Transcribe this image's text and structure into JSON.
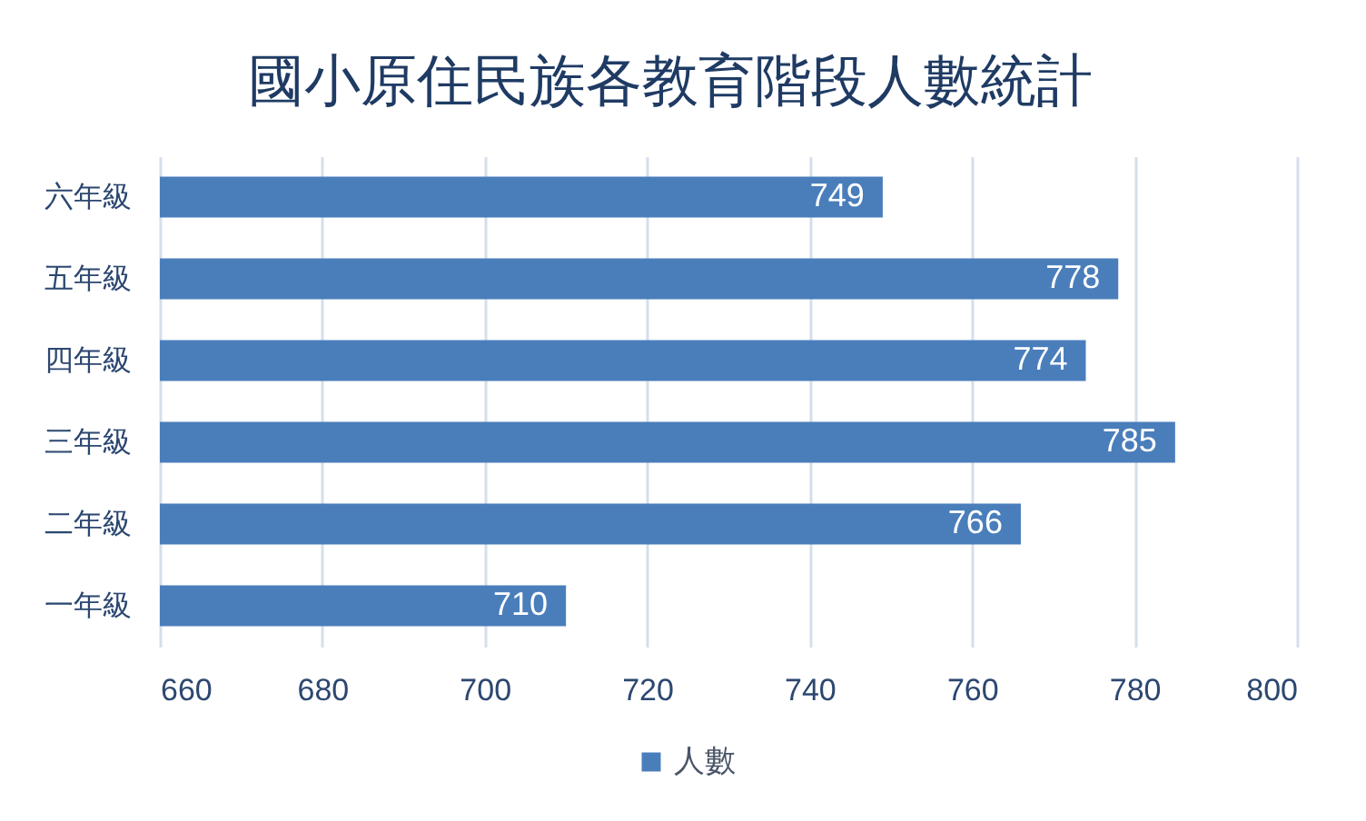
{
  "chart_data": {
    "type": "bar",
    "orientation": "horizontal",
    "title": "國小原住民族各教育階段人數統計",
    "categories": [
      "六年級",
      "五年級",
      "四年級",
      "三年級",
      "二年級",
      "一年級"
    ],
    "series": [
      {
        "name": "人數",
        "color": "#4a7ebb",
        "values": [
          749,
          778,
          774,
          785,
          766,
          710
        ]
      }
    ],
    "xlim": [
      660,
      800
    ],
    "xticks": [
      660,
      680,
      700,
      720,
      740,
      760,
      780,
      800
    ],
    "grid": "x",
    "legend": "bottom",
    "data_labels": true
  }
}
